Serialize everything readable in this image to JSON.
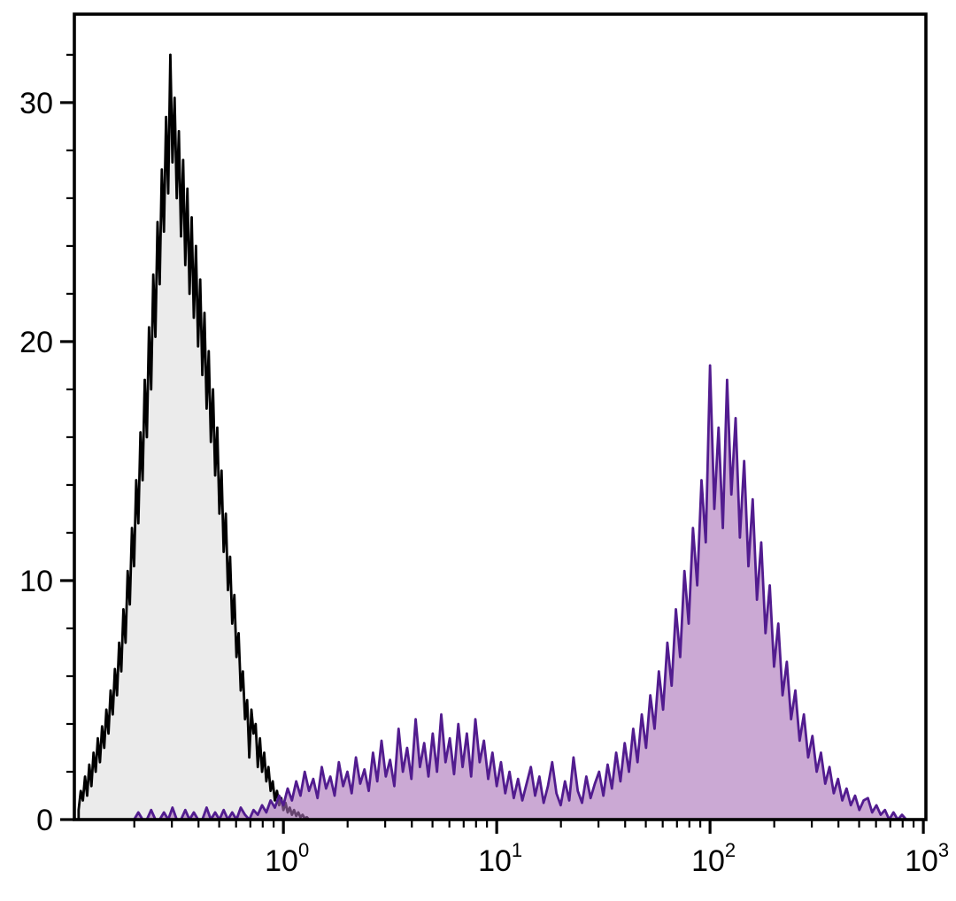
{
  "chart_data": {
    "type": "area",
    "subtype": "flow-cytometry-histogram-overlay",
    "title": "",
    "xlabel": "",
    "ylabel": "",
    "grid": false,
    "legend": "none",
    "x_axis": {
      "scale": "log10",
      "min_log": -0.98,
      "max_log": 3.012,
      "major_ticks": [
        {
          "log": 0,
          "base": "10",
          "exp": "0"
        },
        {
          "log": 1,
          "base": "10",
          "exp": "1"
        },
        {
          "log": 2,
          "base": "10",
          "exp": "2"
        },
        {
          "log": 3,
          "base": "10",
          "exp": "3"
        }
      ],
      "minor_ticks": "log positions 2-9 of each decade"
    },
    "y_axis": {
      "min": 0,
      "max": 33.7,
      "major_ticks": [
        {
          "value": 0,
          "label": "0"
        },
        {
          "value": 10,
          "label": "10"
        },
        {
          "value": 20,
          "label": "20"
        },
        {
          "value": 30,
          "label": "30"
        }
      ],
      "minor_tick_step": 2
    },
    "colors": {
      "gray_fill": "#ebebeb",
      "black_stroke": "#000000",
      "purple_stroke": "#521c8f",
      "purple_fill": "#a86fb8",
      "axis": "#000000"
    },
    "series": [
      {
        "name": "gray-histogram",
        "stroke": "#000000",
        "fill": "#ebebeb",
        "fill_opacity": 1,
        "x_log_start": -0.96,
        "x_log_step": 0.01,
        "y": [
          0.4,
          1.2,
          0.8,
          1.8,
          1.0,
          2.3,
          1.4,
          2.8,
          2.0,
          3.4,
          2.4,
          3.9,
          3.0,
          4.6,
          3.6,
          5.4,
          4.4,
          6.3,
          5.2,
          7.4,
          6.2,
          8.8,
          7.4,
          10.4,
          9.0,
          12.2,
          10.6,
          14.2,
          12.4,
          16.2,
          14.2,
          18.4,
          16.0,
          20.6,
          18.0,
          22.8,
          20.2,
          25.0,
          22.4,
          27.2,
          24.6,
          29.4,
          26.2,
          32.0,
          27.5,
          30.2,
          26.0,
          28.8,
          24.4,
          27.6,
          23.2,
          26.4,
          22.0,
          25.2,
          21.0,
          24.0,
          19.8,
          22.6,
          18.6,
          21.2,
          17.2,
          19.6,
          15.8,
          18.0,
          14.4,
          16.4,
          12.8,
          14.6,
          11.2,
          12.8,
          9.6,
          11.0,
          8.2,
          9.4,
          6.8,
          7.8,
          5.4,
          6.2,
          4.2,
          5.0,
          2.6,
          4.6,
          3.6,
          4.0,
          2.2,
          3.4,
          2.0,
          2.8,
          1.6,
          2.2,
          1.2,
          1.6,
          0.8,
          1.2,
          0.6,
          0.9,
          0.4,
          0.7,
          0.3,
          0.5,
          0.2,
          0.4,
          0.15,
          0.3,
          0.1,
          0.2,
          0.05,
          0.1,
          0
        ]
      },
      {
        "name": "purple-histogram",
        "stroke": "#521c8f",
        "fill": "#a86fb8",
        "fill_opacity": 0.6,
        "x_log_start": -0.7,
        "x_log_step": 0.02,
        "y": [
          0,
          0.3,
          0,
          0,
          0.4,
          0,
          0,
          0.3,
          0,
          0.5,
          0,
          0,
          0.4,
          0,
          0.3,
          0,
          0,
          0.5,
          0,
          0.3,
          0,
          0.4,
          0,
          0.3,
          0,
          0.5,
          0.2,
          0,
          0.4,
          0.2,
          0.6,
          0.3,
          0.8,
          0.5,
          1.0,
          0.6,
          1.3,
          0.8,
          1.6,
          1.0,
          2.0,
          1.2,
          1.7,
          0.9,
          2.2,
          1.3,
          1.8,
          1.0,
          2.4,
          1.4,
          2.0,
          1.1,
          2.6,
          1.5,
          2.1,
          1.2,
          2.8,
          1.6,
          3.3,
          1.8,
          2.5,
          1.4,
          3.8,
          2.0,
          3.0,
          1.7,
          4.2,
          2.2,
          3.2,
          1.8,
          3.6,
          2.0,
          4.4,
          2.4,
          3.4,
          1.9,
          4.0,
          2.2,
          3.6,
          1.8,
          4.2,
          2.4,
          3.3,
          1.7,
          2.8,
          1.4,
          2.4,
          1.1,
          2.0,
          0.9,
          1.7,
          0.8,
          1.5,
          2.2,
          1.0,
          1.8,
          0.7,
          1.4,
          2.4,
          1.1,
          0.6,
          1.6,
          0.8,
          2.6,
          1.2,
          0.7,
          1.8,
          0.9,
          1.5,
          2.0,
          1.0,
          2.3,
          1.3,
          2.8,
          1.6,
          3.2,
          2.0,
          3.8,
          2.4,
          4.4,
          3.0,
          5.2,
          3.8,
          6.2,
          4.6,
          7.4,
          5.6,
          8.8,
          6.8,
          10.4,
          8.2,
          12.2,
          9.8,
          14.2,
          11.6,
          19.0,
          13.0,
          16.4,
          12.2,
          18.4,
          13.6,
          16.8,
          11.8,
          15.0,
          10.6,
          13.4,
          9.2,
          11.6,
          7.8,
          9.8,
          6.4,
          8.2,
          5.2,
          6.6,
          4.2,
          5.4,
          3.3,
          4.4,
          2.6,
          3.5,
          2.0,
          2.8,
          1.5,
          2.2,
          1.1,
          1.7,
          0.8,
          1.3,
          0.6,
          1.0,
          0.4,
          0.8,
          0.9,
          0.3,
          0.6,
          0.2,
          0.4,
          0,
          0.3,
          0,
          0.2,
          0,
          0
        ]
      }
    ]
  }
}
